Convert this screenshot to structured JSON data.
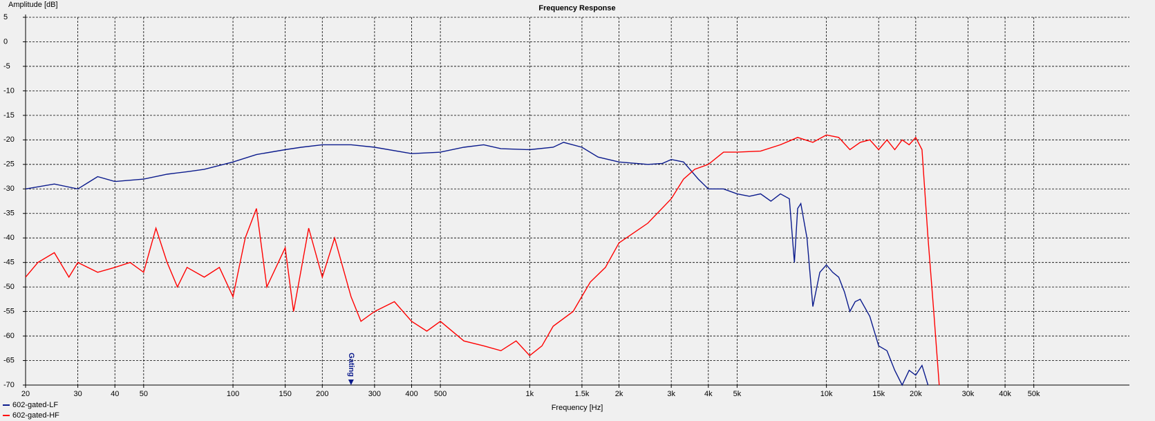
{
  "chart_data": {
    "type": "line",
    "title": "Frequency Response",
    "y_label": "Amplitude [dB]",
    "x_label": "Frequency [Hz]",
    "xscale": "log",
    "grid": true,
    "legend": "bottom-left",
    "xlim": [
      20,
      105000
    ],
    "ylim": [
      -70,
      5
    ],
    "xticks": [
      20,
      30,
      40,
      50,
      100,
      150,
      200,
      300,
      400,
      500,
      {
        "value": 1000,
        "label": "1k"
      },
      {
        "value": 1500,
        "label": "1.5k"
      },
      {
        "value": 2000,
        "label": "2k"
      },
      {
        "value": 3000,
        "label": "3k"
      },
      {
        "value": 4000,
        "label": "4k"
      },
      {
        "value": 5000,
        "label": "5k"
      },
      {
        "value": 10000,
        "label": "10k"
      },
      {
        "value": 15000,
        "label": "15k"
      },
      {
        "value": 20000,
        "label": "20k"
      },
      {
        "value": 30000,
        "label": "30k"
      },
      {
        "value": 40000,
        "label": "40k"
      },
      {
        "value": 50000,
        "label": "50k"
      }
    ],
    "yticks": [
      5,
      0,
      -5,
      -10,
      -15,
      -20,
      -25,
      -30,
      -35,
      -40,
      -45,
      -50,
      -55,
      -60,
      -65,
      -70
    ],
    "annotation": {
      "text": "Gating",
      "x": 250
    },
    "series": [
      {
        "name": "602-gated-LF",
        "color": "#0a1a8c",
        "x": [
          20,
          25,
          30,
          35,
          40,
          50,
          60,
          70,
          80,
          100,
          120,
          150,
          170,
          200,
          250,
          300,
          400,
          500,
          600,
          700,
          800,
          1000,
          1200,
          1300,
          1500,
          1700,
          2000,
          2500,
          2800,
          3000,
          3300,
          3700,
          4000,
          4500,
          5000,
          5500,
          6000,
          6500,
          7000,
          7500,
          7800,
          8000,
          8200,
          8600,
          9000,
          9500,
          10000,
          10500,
          11000,
          11500,
          12000,
          12500,
          13000,
          14000,
          15000,
          16000,
          17000,
          18000,
          19000,
          20000,
          21000,
          22000
        ],
        "values": [
          -30,
          -29,
          -30,
          -27.5,
          -28.5,
          -28,
          -27,
          -26.5,
          -26,
          -24.5,
          -23,
          -22,
          -21.5,
          -21,
          -21,
          -21.5,
          -22.8,
          -22.5,
          -21.5,
          -21,
          -21.8,
          -22,
          -21.5,
          -20.5,
          -21.5,
          -23.5,
          -24.5,
          -25,
          -24.8,
          -24,
          -24.5,
          -28,
          -30,
          -30,
          -31,
          -31.5,
          -31,
          -32.5,
          -31,
          -32,
          -45,
          -34,
          -33,
          -40,
          -54,
          -47,
          -45.5,
          -47,
          -48,
          -51,
          -55,
          -53,
          -52.5,
          -56,
          -62,
          -63,
          -67,
          -70,
          -67,
          -68,
          -66,
          -70
        ]
      },
      {
        "name": "602-gated-HF",
        "color": "#ff0000",
        "x": [
          20,
          22,
          25,
          28,
          30,
          35,
          40,
          45,
          50,
          55,
          60,
          65,
          70,
          80,
          90,
          100,
          110,
          120,
          130,
          150,
          160,
          180,
          200,
          220,
          250,
          270,
          300,
          350,
          400,
          450,
          500,
          600,
          700,
          800,
          900,
          1000,
          1100,
          1200,
          1400,
          1600,
          1800,
          2000,
          2300,
          2500,
          3000,
          3300,
          3600,
          4000,
          4500,
          5000,
          6000,
          7000,
          8000,
          9000,
          10000,
          11000,
          12000,
          13000,
          14000,
          15000,
          16000,
          17000,
          18000,
          19000,
          20000,
          21000,
          22000,
          23000,
          24000
        ],
        "values": [
          -48,
          -45,
          -43,
          -48,
          -45,
          -47,
          -46,
          -45,
          -47,
          -38,
          -45,
          -50,
          -46,
          -48,
          -46,
          -52,
          -40,
          -34,
          -50,
          -42,
          -55,
          -38,
          -48,
          -40,
          -52,
          -57,
          -55,
          -53,
          -57,
          -59,
          -57,
          -61,
          -62,
          -63,
          -61,
          -64,
          -62,
          -58,
          -55,
          -49,
          -46,
          -41,
          -38.5,
          -37,
          -32,
          -28,
          -26,
          -25,
          -22.5,
          -22.5,
          -22.3,
          -21,
          -19.5,
          -20.5,
          -19,
          -19.5,
          -22,
          -20.5,
          -20,
          -22,
          -20,
          -22,
          -20,
          -21,
          -19.5,
          -22,
          -40,
          -55,
          -70
        ]
      }
    ]
  }
}
